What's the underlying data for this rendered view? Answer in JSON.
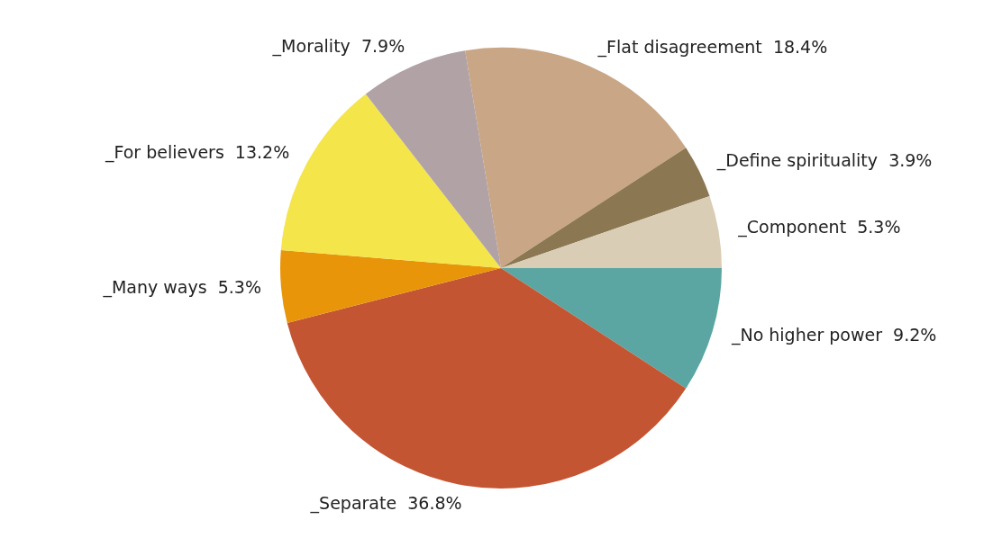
{
  "chart_data": {
    "type": "pie",
    "categories": [
      "_No higher power",
      "_Separate",
      "_Many ways",
      "_For believers",
      "_Morality",
      "_Flat disagreement",
      "_Define spirituality",
      "_Component"
    ],
    "values": [
      9.2,
      36.8,
      5.3,
      13.2,
      7.9,
      18.4,
      3.9,
      5.3
    ],
    "value_labels": [
      "9.2%",
      "36.8%",
      "5.3%",
      "13.2%",
      "7.9%",
      "18.4%",
      "3.9%",
      "5.3%"
    ],
    "colors": [
      "#5ba6a2",
      "#c45532",
      "#e89509",
      "#f4e54a",
      "#b0a2a5",
      "#c9a685",
      "#8b7752",
      "#d9cdb5"
    ],
    "legend": false
  }
}
